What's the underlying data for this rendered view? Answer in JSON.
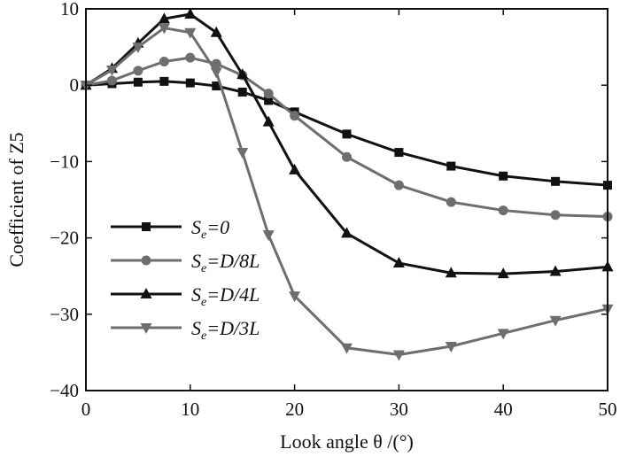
{
  "chart_data": {
    "type": "line",
    "xlabel": "Look angle  θ /(°)",
    "ylabel": "Coefficient of Z5",
    "xlim": [
      0,
      50
    ],
    "ylim": [
      -40,
      10
    ],
    "xticks": [
      0,
      10,
      20,
      30,
      40,
      50
    ],
    "yticks": [
      10,
      0,
      -10,
      -20,
      -30,
      -40
    ],
    "grid": false,
    "legend_position": "bottom-left",
    "series": [
      {
        "name": "Se=0",
        "legend_parts": {
          "var": "S",
          "sub": "e",
          "rest": "=0"
        },
        "color": "#111111",
        "marker": "square",
        "x": [
          0,
          2.5,
          5,
          7.5,
          10,
          12.5,
          15,
          17.5,
          20,
          25,
          30,
          35,
          40,
          45,
          50
        ],
        "y": [
          0,
          0.2,
          0.4,
          0.5,
          0.3,
          -0.1,
          -0.9,
          -2.0,
          -3.5,
          -6.4,
          -8.8,
          -10.6,
          -11.9,
          -12.6,
          -13.1
        ]
      },
      {
        "name": "Se=D/8L",
        "legend_parts": {
          "var": "S",
          "sub": "e",
          "rest": "=D/8L"
        },
        "color": "#6e6e6e",
        "marker": "circle",
        "x": [
          0,
          2.5,
          5,
          7.5,
          10,
          12.5,
          15,
          17.5,
          20,
          25,
          30,
          35,
          40,
          45,
          50
        ],
        "y": [
          0,
          0.6,
          1.9,
          3.1,
          3.6,
          2.8,
          1.3,
          -1.1,
          -4.0,
          -9.4,
          -13.1,
          -15.3,
          -16.4,
          -17.0,
          -17.2
        ]
      },
      {
        "name": "Se=D/4L",
        "legend_parts": {
          "var": "S",
          "sub": "e",
          "rest": "=D/4L"
        },
        "color": "#111111",
        "marker": "triangle-up",
        "x": [
          0,
          2.5,
          5,
          7.5,
          10,
          12.5,
          15,
          17.5,
          20,
          25,
          30,
          35,
          40,
          45,
          50
        ],
        "y": [
          0,
          2.2,
          5.5,
          8.7,
          9.3,
          6.9,
          1.4,
          -4.8,
          -11.1,
          -19.4,
          -23.3,
          -24.6,
          -24.7,
          -24.4,
          -23.8
        ]
      },
      {
        "name": "Se=D/3L",
        "legend_parts": {
          "var": "S",
          "sub": "e",
          "rest": "=D/3L"
        },
        "color": "#6e6e6e",
        "marker": "triangle-down",
        "x": [
          0,
          2.5,
          5,
          7.5,
          10,
          12.5,
          15,
          17.5,
          20,
          25,
          30,
          35,
          40,
          45,
          50
        ],
        "y": [
          0,
          2.0,
          5.0,
          7.5,
          6.9,
          1.7,
          -8.8,
          -19.6,
          -27.6,
          -34.4,
          -35.3,
          -34.2,
          -32.5,
          -30.8,
          -29.3
        ]
      }
    ]
  }
}
